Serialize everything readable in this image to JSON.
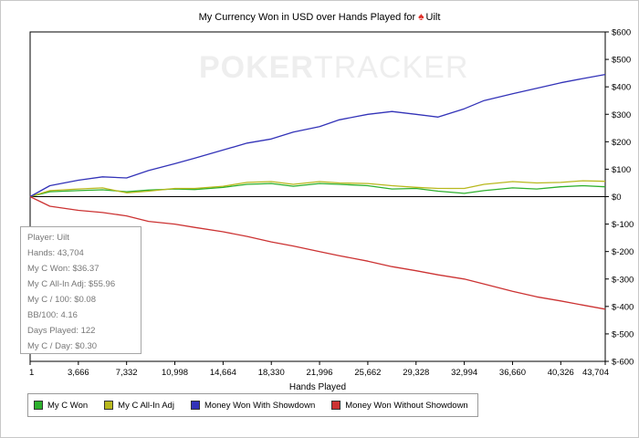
{
  "chart_data": {
    "type": "line",
    "title_pre": "My Currency Won in USD over Hands Played for",
    "title_player": "Uilt",
    "xlabel": "Hands Played",
    "ylabel": "",
    "xlim": [
      1,
      43704
    ],
    "ylim": [
      -600,
      600
    ],
    "x_ticks": [
      1,
      3666,
      7332,
      10998,
      14664,
      18330,
      21996,
      25662,
      29328,
      32994,
      36660,
      40326,
      43704
    ],
    "x_tick_labels": [
      "1",
      "3,666",
      "7,332",
      "10,998",
      "14,664",
      "18,330",
      "21,996",
      "25,662",
      "29,328",
      "32,994",
      "36,660",
      "40,326",
      "43,704"
    ],
    "y_ticks": [
      600,
      500,
      400,
      300,
      200,
      100,
      0,
      -100,
      -200,
      -300,
      -400,
      -500,
      -600
    ],
    "y_tick_labels": [
      "$600",
      "$500",
      "$400",
      "$300",
      "$200",
      "$100",
      "$0",
      "$-100",
      "$-200",
      "$-300",
      "$-400",
      "$-500",
      "$-600"
    ],
    "grid": false,
    "legend_position": "bottom-left",
    "series": [
      {
        "name": "My C Won",
        "color": "#2db02d",
        "x": [
          1,
          1500,
          3666,
          5500,
          7332,
          9000,
          10998,
          12500,
          14664,
          16500,
          18330,
          20000,
          21996,
          23500,
          25662,
          27500,
          29328,
          31000,
          32994,
          34500,
          36660,
          38500,
          40326,
          42000,
          43704
        ],
        "y": [
          0,
          18,
          22,
          25,
          18,
          24,
          28,
          26,
          34,
          45,
          48,
          38,
          48,
          45,
          40,
          28,
          30,
          20,
          12,
          22,
          32,
          28,
          36,
          40,
          36
        ]
      },
      {
        "name": "My C All-In Adj",
        "color": "#b8b81e",
        "x": [
          1,
          1500,
          3666,
          5500,
          7332,
          9000,
          10998,
          12500,
          14664,
          16500,
          18330,
          20000,
          21996,
          23500,
          25662,
          27500,
          29328,
          31000,
          32994,
          34500,
          36660,
          38500,
          40326,
          42000,
          43704
        ],
        "y": [
          0,
          22,
          28,
          32,
          14,
          20,
          30,
          30,
          38,
          52,
          55,
          45,
          55,
          50,
          48,
          40,
          34,
          30,
          30,
          45,
          55,
          50,
          52,
          58,
          56
        ]
      },
      {
        "name": "Money Won With Showdown",
        "color": "#3333b8",
        "x": [
          1,
          1500,
          3666,
          5500,
          7332,
          9000,
          10998,
          12500,
          14664,
          16500,
          18330,
          20000,
          21996,
          23500,
          25662,
          27500,
          29328,
          31000,
          32994,
          34500,
          36660,
          38500,
          40326,
          42000,
          43704
        ],
        "y": [
          0,
          40,
          60,
          72,
          68,
          95,
          120,
          140,
          170,
          195,
          210,
          235,
          255,
          280,
          300,
          310,
          300,
          290,
          320,
          350,
          375,
          395,
          415,
          430,
          445
        ]
      },
      {
        "name": "Money Won Without Showdown",
        "color": "#cc3333",
        "x": [
          1,
          1500,
          3666,
          5500,
          7332,
          9000,
          10998,
          12500,
          14664,
          16500,
          18330,
          20000,
          21996,
          23500,
          25662,
          27500,
          29328,
          31000,
          32994,
          34500,
          36660,
          38500,
          40326,
          42000,
          43704
        ],
        "y": [
          0,
          -35,
          -50,
          -58,
          -70,
          -90,
          -100,
          -112,
          -128,
          -145,
          -165,
          -180,
          -200,
          -215,
          -235,
          -255,
          -270,
          -285,
          -300,
          -318,
          -345,
          -365,
          -380,
          -395,
          -410
        ]
      }
    ]
  },
  "watermark": {
    "bold": "POKER",
    "light": "TRACKER"
  },
  "stats": {
    "player": "Player: Uilt",
    "hands": "Hands: 43,704",
    "won": "My C Won: $36.37",
    "allin": "My C All-In Adj: $55.96",
    "per100": "My C / 100: $0.08",
    "bb100": "BB/100: 4.16",
    "days": "Days Played: 122",
    "perday": "My C / Day: $0.30"
  }
}
